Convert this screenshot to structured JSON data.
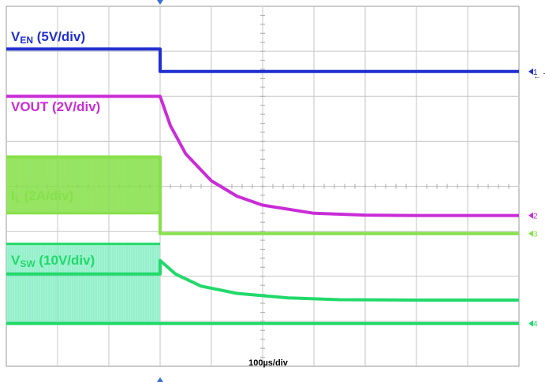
{
  "colors": {
    "ch1": "#1f2fd0",
    "ch2": "#c92cd6",
    "ch3": "#86e04a",
    "ch4": "#22d96a",
    "ch4_fill": "#86efc8",
    "grid": "#c6c6c6",
    "marker": "#3a6fd8"
  },
  "chart_data": {
    "type": "line",
    "title": "",
    "xlabel": "",
    "ylabel": "",
    "timebase": "100µs/div",
    "x_divisions": 10,
    "y_divisions": 8,
    "grid": true,
    "x_unit": "µs",
    "series": [
      {
        "channel": 1,
        "label": {
          "main": "V",
          "sub": "EN",
          "rest": " (5V/div)"
        },
        "marker_label": "1",
        "x": [
          0,
          300,
          300,
          1000
        ],
        "y": [
          7.05,
          7.05,
          6.55,
          6.55
        ]
      },
      {
        "channel": 2,
        "label": {
          "main": "VOUT (2V/div)",
          "sub": "",
          "rest": ""
        },
        "marker_label": "2",
        "x": [
          0,
          300,
          320,
          350,
          400,
          450,
          500,
          600,
          700,
          800,
          1000
        ],
        "y": [
          6.0,
          6.0,
          5.35,
          4.72,
          4.12,
          3.78,
          3.58,
          3.4,
          3.36,
          3.35,
          3.35
        ]
      },
      {
        "channel": 3,
        "label": {
          "main": "I",
          "sub": "L",
          "rest": " (2A/div)"
        },
        "marker_label": "3",
        "x": [
          0,
          300,
          300,
          1000
        ],
        "y": [
          4.65,
          4.65,
          2.95,
          2.95
        ],
        "envelope_until": 300,
        "envelope": [
          3.4,
          4.65
        ]
      },
      {
        "channel": 4,
        "label": {
          "main": "V",
          "sub": "SW",
          "rest": " (10V/div)"
        },
        "marker_label": "4",
        "x": [
          0,
          300,
          300,
          330,
          380,
          450,
          550,
          650,
          800,
          1000
        ],
        "y": [
          2.05,
          2.05,
          2.35,
          2.05,
          1.78,
          1.62,
          1.52,
          1.48,
          1.47,
          1.47
        ],
        "envelope_until": 300,
        "envelope": [
          0.95,
          2.72
        ],
        "baseline": 0.95
      }
    ],
    "trigger_marker": "T"
  }
}
